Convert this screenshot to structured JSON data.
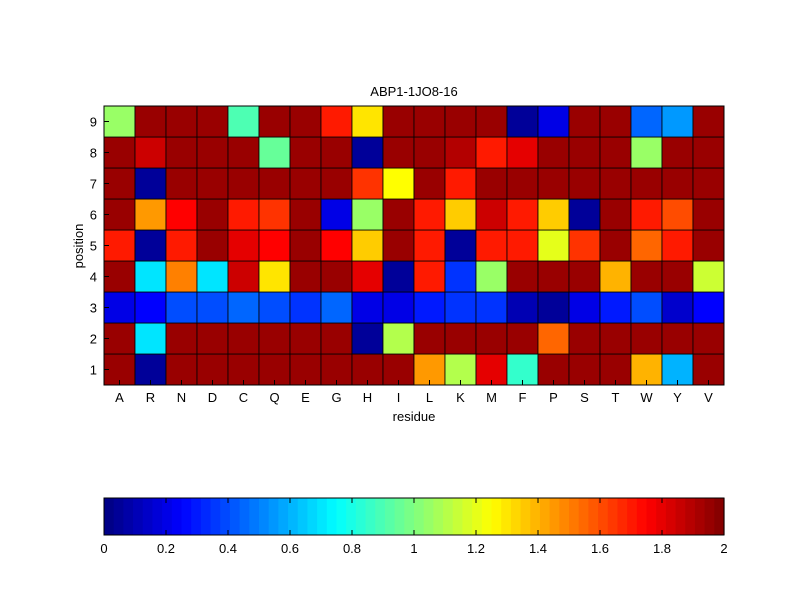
{
  "chart_data": {
    "type": "heatmap",
    "title": "ABP1-1JO8-16",
    "xlabel": "residue",
    "ylabel": "position",
    "x_categories": [
      "A",
      "R",
      "N",
      "D",
      "C",
      "Q",
      "E",
      "G",
      "H",
      "I",
      "L",
      "K",
      "M",
      "F",
      "P",
      "S",
      "T",
      "W",
      "Y",
      "V"
    ],
    "y_categories": [
      "1",
      "2",
      "3",
      "4",
      "5",
      "6",
      "7",
      "8",
      "9"
    ],
    "values": [
      [
        1.95,
        0.05,
        1.95,
        1.95,
        1.95,
        1.95,
        1.95,
        1.95,
        1.95,
        1.95,
        1.45,
        1.1,
        1.8,
        0.85,
        1.95,
        1.95,
        1.95,
        1.4,
        0.6,
        1.95
      ],
      [
        1.95,
        0.7,
        1.95,
        1.95,
        1.95,
        1.95,
        1.95,
        1.95,
        0.05,
        1.1,
        1.95,
        1.95,
        1.95,
        1.95,
        1.55,
        1.95,
        1.95,
        1.95,
        1.95,
        1.95
      ],
      [
        0.2,
        0.25,
        0.4,
        0.4,
        0.45,
        0.4,
        0.35,
        0.45,
        0.2,
        0.2,
        0.3,
        0.35,
        0.35,
        0.1,
        0.05,
        0.2,
        0.3,
        0.4,
        0.15,
        0.25
      ],
      [
        1.95,
        0.7,
        1.5,
        0.7,
        1.85,
        1.3,
        1.95,
        1.95,
        1.8,
        0.05,
        1.7,
        0.35,
        1.05,
        1.95,
        1.95,
        1.95,
        1.4,
        1.95,
        1.95,
        1.15
      ],
      [
        1.7,
        0.05,
        1.7,
        1.95,
        1.8,
        1.75,
        1.95,
        1.75,
        1.35,
        1.95,
        1.7,
        0.05,
        1.7,
        1.7,
        1.2,
        1.65,
        1.95,
        1.55,
        1.7,
        1.95
      ],
      [
        1.95,
        1.45,
        1.75,
        1.95,
        1.7,
        1.65,
        1.95,
        0.2,
        1.05,
        1.95,
        1.7,
        1.35,
        1.85,
        1.7,
        1.35,
        0.05,
        1.95,
        1.7,
        1.6,
        1.95
      ],
      [
        1.95,
        0.05,
        1.95,
        1.95,
        1.95,
        1.95,
        1.95,
        1.95,
        1.65,
        1.25,
        1.95,
        1.7,
        1.95,
        1.95,
        1.95,
        1.95,
        1.95,
        1.95,
        1.95,
        1.95
      ],
      [
        1.95,
        1.85,
        1.95,
        1.95,
        1.95,
        0.95,
        1.95,
        1.95,
        0.05,
        1.95,
        1.95,
        1.9,
        1.7,
        1.8,
        1.95,
        1.95,
        1.95,
        1.05,
        1.95,
        1.95
      ],
      [
        1.05,
        1.95,
        1.95,
        1.95,
        0.9,
        1.95,
        1.95,
        1.7,
        1.3,
        1.95,
        1.95,
        1.95,
        1.95,
        0.05,
        0.2,
        1.95,
        1.95,
        0.45,
        0.55,
        1.95
      ]
    ],
    "colormap": "jet",
    "clim": [
      0,
      2
    ],
    "colorbar_ticks": [
      "0",
      "0.2",
      "0.4",
      "0.6",
      "0.8",
      "1",
      "1.2",
      "1.4",
      "1.6",
      "1.8",
      "2"
    ],
    "colorbar_position": "bottom",
    "grid": false
  }
}
